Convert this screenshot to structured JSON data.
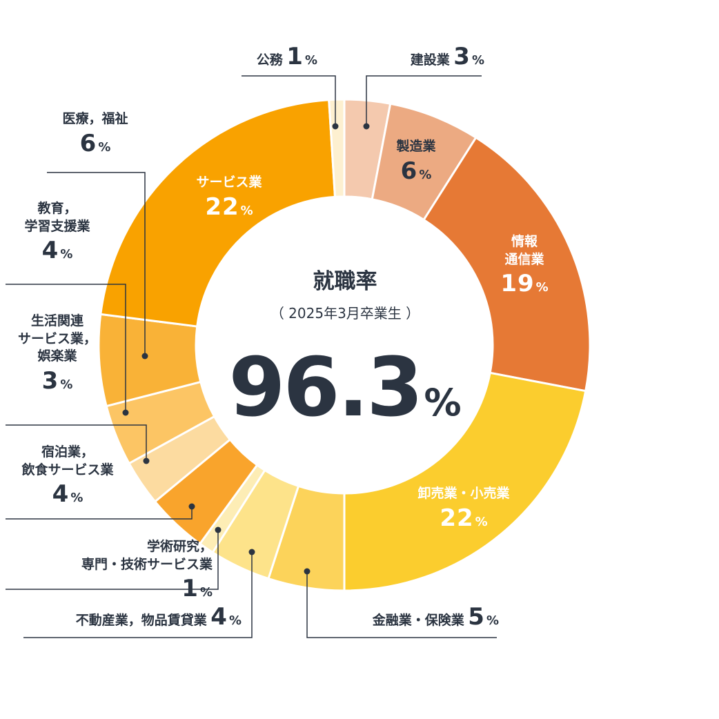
{
  "chart_data": {
    "type": "pie",
    "center": {
      "title": "就職率",
      "subtitle": "（ 2025年3月卒業生 ）",
      "rate_value": "96.3",
      "rate_unit": "%"
    },
    "unit": "%",
    "slices": [
      {
        "id": "s1",
        "name": "建設業",
        "value": 3,
        "color": "#f4c9ae"
      },
      {
        "id": "s2",
        "name": "製造業",
        "value": 6,
        "color": "#ecaa82"
      },
      {
        "id": "s3",
        "name": "情報\n通信業",
        "value": 19,
        "color": "#e67935"
      },
      {
        "id": "s4",
        "name": "卸売業・小売業",
        "value": 22,
        "color": "#fbcd2e"
      },
      {
        "id": "s5",
        "name": "金融業・保険業",
        "value": 5,
        "color": "#fcd35a"
      },
      {
        "id": "s6",
        "name": "不動産業，物品賃貸業",
        "value": 4,
        "color": "#fde38a"
      },
      {
        "id": "s7",
        "name": "学術研究，\n専門・技術サービス業",
        "value": 1,
        "color": "#fdedb5"
      },
      {
        "id": "s8",
        "name": "宿泊業，\n飲食サービス業",
        "value": 4,
        "color": "#f9a42c"
      },
      {
        "id": "s9",
        "name": "生活関連\nサービス業，\n娯楽業",
        "value": 3,
        "color": "#fcdba0"
      },
      {
        "id": "s10",
        "name": "教育，\n学習支援業",
        "value": 4,
        "color": "#fcc564"
      },
      {
        "id": "s11",
        "name": "医療，福祉",
        "value": 6,
        "color": "#f9b237"
      },
      {
        "id": "s12",
        "name": "サービス業",
        "value": 22,
        "color": "#f9a200"
      },
      {
        "id": "s13",
        "name": "公務",
        "value": 1,
        "color": "#fdf0d0"
      }
    ]
  }
}
